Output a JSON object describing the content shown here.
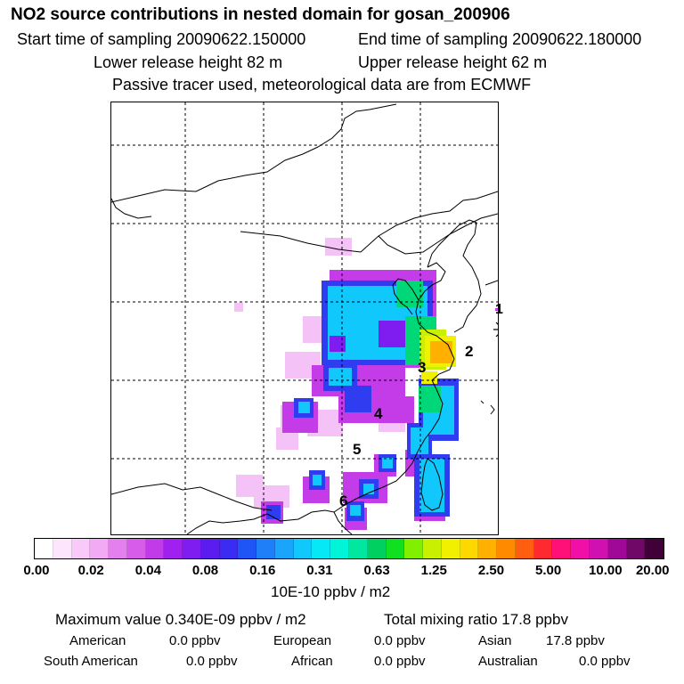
{
  "header": {
    "title": "NO2 source contributions in nested domain for gosan_200906",
    "start_time": "Start time of sampling 20090622.150000",
    "end_time": "End time of sampling 20090622.180000",
    "lower_height": "Lower release height   82 m",
    "upper_height": "Upper release height   62 m",
    "tracer_note": "Passive tracer used, meteorological data are from ECMWF"
  },
  "map": {
    "site_marker": "asterisk-icon",
    "point_labels": [
      "1",
      "2",
      "3",
      "4",
      "5",
      "6"
    ]
  },
  "colorbar": {
    "colors": [
      "#ffffff",
      "#fde6fd",
      "#f9c9f9",
      "#f3aaf5",
      "#e47fee",
      "#d65ce9",
      "#c23be8",
      "#a020f0",
      "#7f1cf0",
      "#5b1cf0",
      "#3b2cf4",
      "#1f55f6",
      "#1e7ff8",
      "#1aa4fa",
      "#10c8fb",
      "#06e8f6",
      "#00f5d8",
      "#00e8a0",
      "#00d060",
      "#10e020",
      "#80f000",
      "#c8f000",
      "#f0f000",
      "#ffd800",
      "#ffb000",
      "#ff8a00",
      "#ff5e10",
      "#ff2a30",
      "#ff1078",
      "#f010a8",
      "#d010b0",
      "#a00898",
      "#700868",
      "#400038"
    ],
    "tick_labels": [
      "0.00",
      "0.02",
      "0.04",
      "0.08",
      "0.16",
      "0.31",
      "0.63",
      "1.25",
      "2.50",
      "5.00",
      "10.00",
      "20.00"
    ],
    "unit": "10E-10 ppbv / m2"
  },
  "summary": {
    "max_value": "Maximum value  0.340E-09 ppbv / m2",
    "total_mixing": "Total mixing ratio     17.8 ppbv",
    "rows": [
      [
        {
          "label": "American",
          "value": "0.0 ppbv"
        },
        {
          "label": "European",
          "value": "0.0 ppbv"
        },
        {
          "label": "Asian",
          "value": "17.8 ppbv"
        }
      ],
      [
        {
          "label": "South American",
          "value": "0.0 ppbv"
        },
        {
          "label": "African",
          "value": "0.0 ppbv"
        },
        {
          "label": "Australian",
          "value": "0.0 ppbv"
        }
      ]
    ]
  }
}
